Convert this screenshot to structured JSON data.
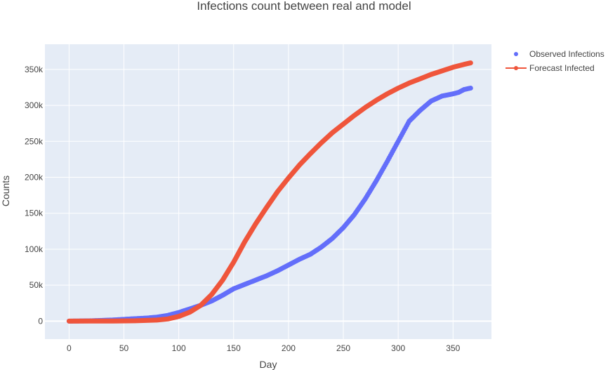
{
  "chart_data": {
    "type": "line",
    "title": "Infections count between real and model",
    "xlabel": "Day",
    "ylabel": "Counts",
    "xlim": [
      -22,
      385
    ],
    "ylim": [
      -25000,
      385000
    ],
    "x_ticks": [
      0,
      50,
      100,
      150,
      200,
      250,
      300,
      350
    ],
    "x_tick_labels": [
      "0",
      "50",
      "100",
      "150",
      "200",
      "250",
      "300",
      "350"
    ],
    "y_ticks": [
      0,
      50000,
      100000,
      150000,
      200000,
      250000,
      300000,
      350000
    ],
    "y_tick_labels": [
      "0",
      "50k",
      "100k",
      "150k",
      "200k",
      "250k",
      "300k",
      "350k"
    ],
    "grid": true,
    "legend_position": "top-right",
    "background_color": "#e5ecf6",
    "grid_color": "#ffffff",
    "series": [
      {
        "name": "Observed Infections",
        "mode": "markers",
        "color": "#636efa",
        "x": [
          0,
          10,
          20,
          30,
          40,
          50,
          60,
          70,
          80,
          90,
          100,
          110,
          120,
          125,
          130,
          140,
          150,
          160,
          170,
          180,
          190,
          200,
          210,
          220,
          230,
          240,
          250,
          260,
          270,
          280,
          290,
          300,
          310,
          320,
          330,
          340,
          350,
          355,
          360,
          366
        ],
        "y": [
          0,
          200,
          500,
          1000,
          1600,
          2500,
          3400,
          4200,
          5500,
          8000,
          12000,
          17000,
          22000,
          25000,
          28000,
          36000,
          45000,
          51000,
          57000,
          63000,
          70000,
          78000,
          86000,
          93000,
          103000,
          115000,
          130000,
          148000,
          170000,
          195000,
          222000,
          250000,
          278000,
          293000,
          306000,
          313000,
          316000,
          318000,
          322000,
          324000
        ]
      },
      {
        "name": "Forecast Infected",
        "mode": "lines+markers",
        "color": "#ef553b",
        "x": [
          0,
          20,
          40,
          60,
          80,
          90,
          100,
          110,
          120,
          130,
          140,
          150,
          160,
          170,
          180,
          190,
          200,
          210,
          220,
          230,
          240,
          250,
          260,
          270,
          280,
          290,
          300,
          310,
          320,
          330,
          340,
          350,
          360,
          366
        ],
        "y": [
          0,
          50,
          150,
          500,
          1500,
          3000,
          6500,
          12500,
          22000,
          37000,
          57000,
          82000,
          110000,
          135000,
          158000,
          180000,
          199000,
          217000,
          233000,
          248000,
          262000,
          274000,
          286000,
          297000,
          307000,
          316000,
          324000,
          331000,
          337000,
          343000,
          348000,
          353000,
          357000,
          359000
        ]
      }
    ]
  }
}
